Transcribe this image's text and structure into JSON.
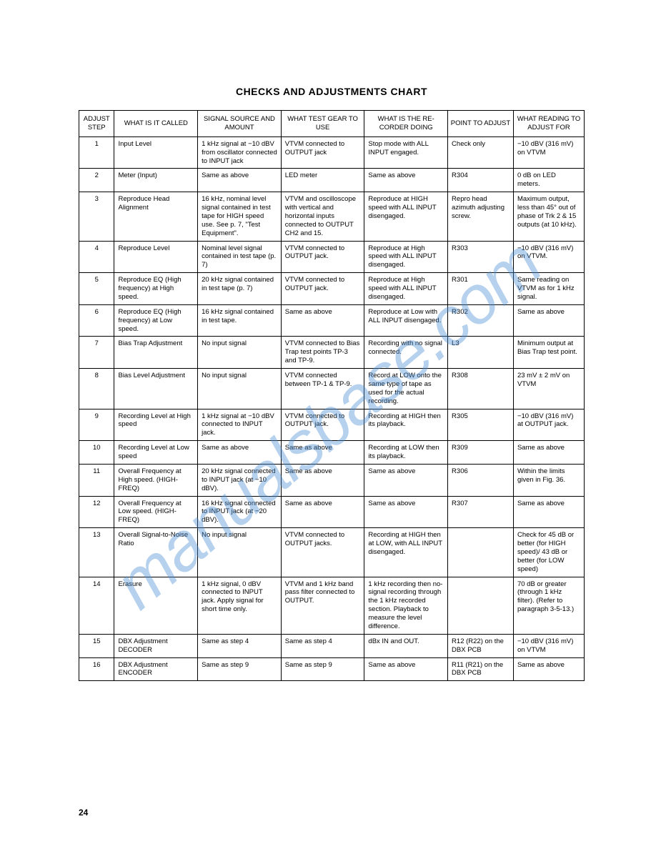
{
  "title": "CHECKS AND ADJUSTMENTS CHART",
  "page_number": "24",
  "watermark": "manualsbase.com",
  "columns": [
    "ADJUST STEP",
    "WHAT IS IT CALLED",
    "SIGNAL SOURCE AND AMOUNT",
    "WHAT TEST GEAR TO USE",
    "WHAT IS THE RE-CORDER DOING",
    "POINT TO ADJUST",
    "WHAT READING TO ADJUST FOR"
  ],
  "rows": [
    {
      "step": "1",
      "what": "Input Level",
      "src": "1 kHz signal at −10 dBV from oscillator connected to INPUT jack",
      "gear": "VTVM connected to OUTPUT jack",
      "rec": "Stop mode with ALL INPUT engaged.",
      "point": "Check only",
      "read": "−10 dBV (316 mV) on VTVM"
    },
    {
      "step": "2",
      "what": "Meter (Input)",
      "src": "Same as above",
      "gear": "LED meter",
      "rec": "Same as above",
      "point": "R304",
      "read": "0 dB on LED meters."
    },
    {
      "step": "3",
      "what": "Reproduce Head Alignment",
      "src": "16 kHz, nominal level signal contained in test tape for HIGH speed use. See p. 7, \"Test Equipment\".",
      "gear": "VTVM and oscilloscope with vertical and horizontal inputs connected to OUTPUT CH2 and 15.",
      "rec": "Reproduce at HIGH speed with ALL INPUT disengaged.",
      "point": "Repro head azimuth adjusting screw.",
      "read": "Maximum output, less than 45° out of phase of Trk 2 & 15 outputs (at 10 kHz)."
    },
    {
      "step": "4",
      "what": "Reproduce Level",
      "src": "Nominal level signal contained in test tape (p. 7)",
      "gear": "VTVM connected to OUTPUT jack.",
      "rec": "Reproduce at High speed with ALL INPUT disengaged.",
      "point": "R303",
      "read": "−10 dBV (316 mV) on VTVM."
    },
    {
      "step": "5",
      "what": "Reproduce EQ (High frequency) at High speed.",
      "src": "20 kHz signal contained in test tape (p. 7)",
      "gear": "VTVM connected to OUTPUT jack.",
      "rec": "Reproduce at High speed with ALL INPUT disengaged.",
      "point": "R301",
      "read": "Same reading on VTVM as for 1 kHz signal."
    },
    {
      "step": "6",
      "what": "Reproduce EQ (High frequency) at Low speed.",
      "src": "16 kHz signal contained in test tape.",
      "gear": "Same as above",
      "rec": "Reproduce at Low with ALL INPUT disengaged.",
      "point": "R302",
      "read": "Same as above"
    },
    {
      "step": "7",
      "what": "Bias Trap Adjustment",
      "src": "No input signal",
      "gear": "VTVM connected to Bias Trap test points TP-3 and TP-9.",
      "rec": "Recording with no signal connected.",
      "point": "L3",
      "read": "Minimum output at Bias Trap test point."
    },
    {
      "step": "8",
      "what": "Bias Level Adjustment",
      "src": "No input signal",
      "gear": "VTVM connected between TP-1 & TP-9.",
      "rec": "Record at LOW onto the same type of tape as used for the actual recording.",
      "point": "R308",
      "read": "23 mV ± 2 mV on VTVM"
    },
    {
      "step": "9",
      "what": "Recording Level at High speed",
      "src": "1 kHz signal at −10 dBV connected to INPUT jack.",
      "gear": "VTVM connected to OUTPUT jack.",
      "rec": "Recording at HIGH then its playback.",
      "point": "R305",
      "read": "−10 dBV (316 mV) at OUTPUT jack."
    },
    {
      "step": "10",
      "what": "Recording Level at Low speed",
      "src": "Same as above",
      "gear": "Same as above",
      "rec": "Recording at LOW then its playback.",
      "point": "R309",
      "read": "Same as above"
    },
    {
      "step": "11",
      "what": "Overall Frequency at High speed. (HIGH-FREQ)",
      "src": "20 kHz signal connected to INPUT jack (at −10 dBV).",
      "gear": "Same as above",
      "rec": "Same as above",
      "point": "R306",
      "read": "Within the limits given in Fig. 36."
    },
    {
      "step": "12",
      "what": "Overall Frequency at Low speed. (HIGH-FREQ)",
      "src": "16 kHz signal connected to INPUT jack (at −20 dBV).",
      "gear": "Same as above",
      "rec": "Same as above",
      "point": "R307",
      "read": "Same as above"
    },
    {
      "step": "13",
      "what": "Overall Signal-to-Noise Ratio",
      "src": "No input signal",
      "gear": "VTVM connected to OUTPUT jacks.",
      "rec": "Recording at HIGH then at LOW, with ALL INPUT disengaged.",
      "point": "",
      "read": "Check for 45 dB or better (for HIGH speed)/ 43 dB or better (for LOW speed)"
    },
    {
      "step": "14",
      "what": "Erasure",
      "src": "1 kHz signal, 0 dBV connected to INPUT jack. Apply signal for short time only.",
      "gear": "VTVM and 1 kHz band pass filter connected to OUTPUT.",
      "rec": "1 kHz recording then no-signal recording through the 1 kHz recorded section. Playback to measure the level difference.",
      "point": "",
      "read": "70 dB or greater (through 1 kHz filter). (Refer to paragraph 3-5-13.)"
    },
    {
      "step": "15",
      "what": "DBX Adjustment DECODER",
      "src": "Same as step 4",
      "gear": "Same as step 4",
      "rec": "dBx IN and OUT.",
      "point": "R12 (R22) on the DBX PCB",
      "read": "−10 dBV (316 mV) on VTVM"
    },
    {
      "step": "16",
      "what": "DBX Adjustment ENCODER",
      "src": "Same as step 9",
      "gear": "Same as step 9",
      "rec": "Same as above",
      "point": "R11 (R21) on the DBX PCB",
      "read": "Same as above"
    }
  ]
}
